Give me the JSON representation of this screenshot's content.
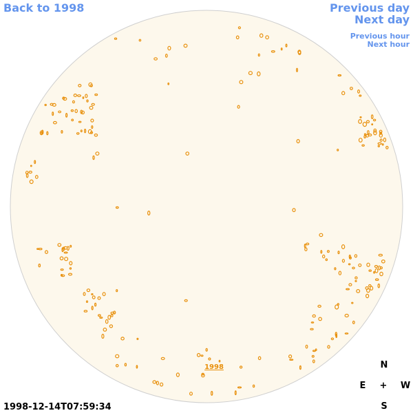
{
  "nav": {
    "back": "Back to 1998",
    "previous_day": "Previous day",
    "next_day": "Next day",
    "previous_hour": "Previous hour",
    "next_hour": "Next hour"
  },
  "disk_link": "1998",
  "compass": {
    "north": "N",
    "east": "E",
    "center": "+",
    "west": "W",
    "south": "S"
  },
  "timestamp": "1998-12-14T07:59:34"
}
